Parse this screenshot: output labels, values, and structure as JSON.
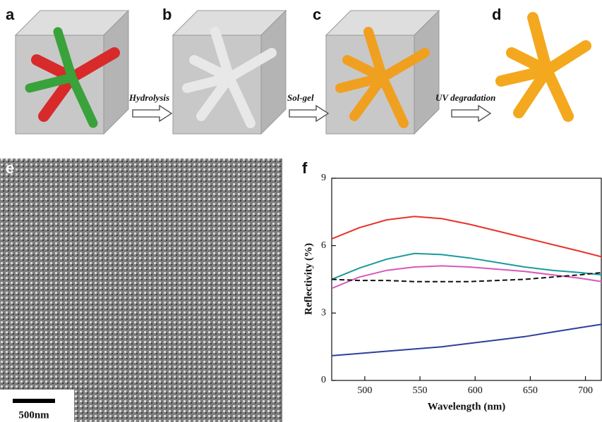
{
  "panel_labels": [
    "a",
    "b",
    "c",
    "d",
    "e"
  ],
  "arrows": [
    "Hydrolysis",
    "Sol-gel",
    "UV degradation"
  ],
  "scale_bar": "500nm",
  "chart_data": {
    "type": "line",
    "panel_label": "f",
    "x_label": "Wavelength (nm)",
    "y_label": "Reflectivity (%)",
    "x": [
      470,
      495,
      520,
      545,
      570,
      595,
      620,
      645,
      670,
      695,
      715
    ],
    "series": [
      {
        "color": "#e8322a",
        "style": "solid",
        "values": [
          6.3,
          6.8,
          7.15,
          7.3,
          7.2,
          6.95,
          6.65,
          6.35,
          6.05,
          5.75,
          5.5
        ]
      },
      {
        "color": "#1a9a9a",
        "style": "solid",
        "values": [
          4.5,
          5.0,
          5.4,
          5.65,
          5.6,
          5.45,
          5.25,
          5.05,
          4.9,
          4.8,
          4.7
        ]
      },
      {
        "color": "#d957b8",
        "style": "solid",
        "values": [
          4.1,
          4.6,
          4.9,
          5.05,
          5.1,
          5.05,
          4.95,
          4.85,
          4.7,
          4.55,
          4.4
        ]
      },
      {
        "color": "#111111",
        "style": "dashed",
        "values": [
          4.5,
          4.45,
          4.45,
          4.4,
          4.4,
          4.4,
          4.45,
          4.5,
          4.6,
          4.7,
          4.8
        ]
      },
      {
        "color": "#2e3f9e",
        "style": "solid",
        "values": [
          1.1,
          1.2,
          1.3,
          1.4,
          1.5,
          1.65,
          1.8,
          1.95,
          2.15,
          2.35,
          2.5
        ]
      }
    ],
    "xlim": [
      470,
      715
    ],
    "ylim": [
      0,
      9
    ],
    "xticks": [
      500,
      550,
      600,
      650,
      700
    ],
    "yticks": [
      0,
      3,
      6,
      9
    ]
  }
}
